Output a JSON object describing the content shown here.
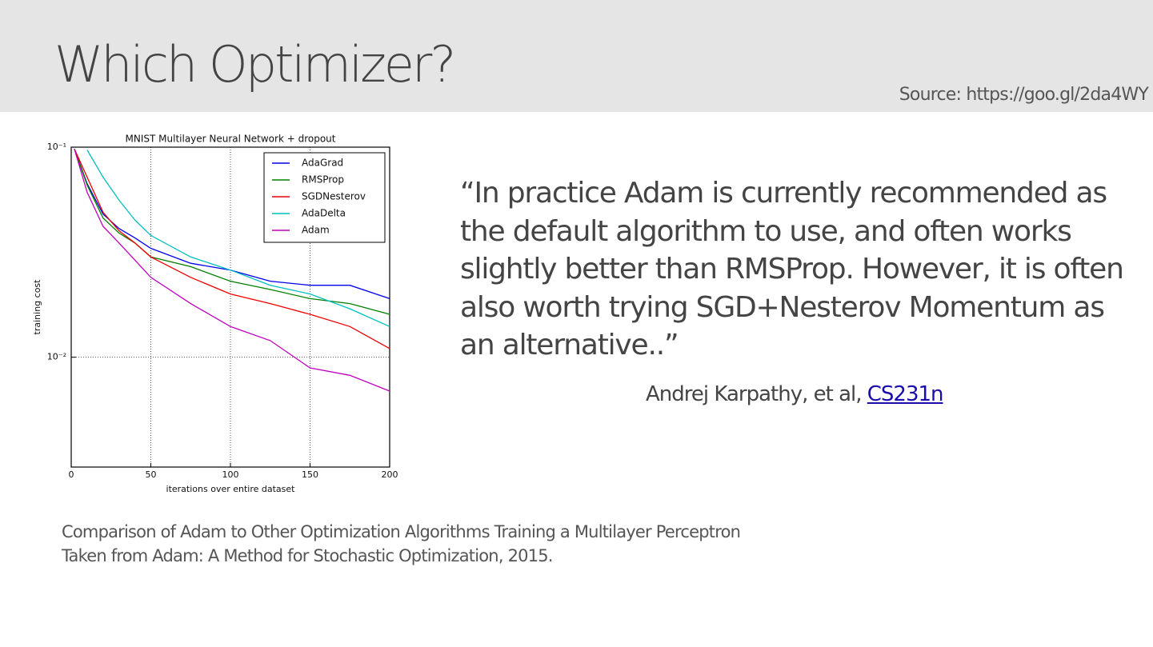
{
  "header": {
    "title": "Which Optimizer?",
    "source": "Source: https://goo.gl/2da4WY"
  },
  "chart_data": {
    "type": "line",
    "title": "MNIST Multilayer Neural Network + dropout",
    "xlabel": "iterations over entire dataset",
    "ylabel": "training cost",
    "x": [
      2,
      10,
      20,
      30,
      40,
      50,
      75,
      100,
      125,
      150,
      175,
      200
    ],
    "series": [
      {
        "name": "AdaGrad",
        "color": "#0000ee",
        "values": [
          0.098,
          0.067,
          0.048,
          0.041,
          0.037,
          0.033,
          0.028,
          0.026,
          0.023,
          0.022,
          0.022,
          0.019
        ]
      },
      {
        "name": "RMSProp",
        "color": "#008000",
        "values": [
          0.098,
          0.066,
          0.046,
          0.039,
          0.035,
          0.03,
          0.027,
          0.023,
          0.021,
          0.019,
          0.018,
          0.016
        ]
      },
      {
        "name": "SGDNesterov",
        "color": "#ee0000",
        "values": [
          0.098,
          0.072,
          0.049,
          0.04,
          0.035,
          0.03,
          0.024,
          0.02,
          0.018,
          0.016,
          0.014,
          0.011
        ]
      },
      {
        "name": "AdaDelta",
        "color": "#00bfbf",
        "values": [
          null,
          0.097,
          0.072,
          0.056,
          0.045,
          0.038,
          0.03,
          0.026,
          0.022,
          0.02,
          0.017,
          0.014
        ]
      },
      {
        "name": "Adam",
        "color": "#bf00bf",
        "values": [
          0.098,
          0.061,
          0.042,
          0.035,
          0.029,
          0.024,
          0.018,
          0.014,
          0.012,
          0.0089,
          0.0082,
          0.0069
        ]
      }
    ],
    "xlim": [
      0,
      200
    ],
    "xticks": [
      0,
      50,
      100,
      150,
      200
    ],
    "ylim": [
      0.003,
      0.1
    ],
    "yticks": [
      {
        "value": 0.1,
        "label": "10⁻¹"
      },
      {
        "value": 0.01,
        "label": "10⁻²"
      }
    ],
    "log_y": true,
    "grid": true,
    "legend": "upper right"
  },
  "quote": {
    "lines": [
      "“In practice Adam is currently recommended as",
      "the default algorithm to use, and often works",
      "slightly better than RMSProp. However, it is often",
      "also worth trying SGD+Nesterov Momentum as",
      "an alternative..”"
    ],
    "attribution": "Andrej Karpathy, et al,",
    "link": "CS231n"
  },
  "caption": {
    "lines": [
      "Comparison of Adam to Other Optimization Algorithms Training a Multilayer Perceptron",
      "Taken from Adam: A Method for Stochastic Optimization, 2015."
    ]
  }
}
